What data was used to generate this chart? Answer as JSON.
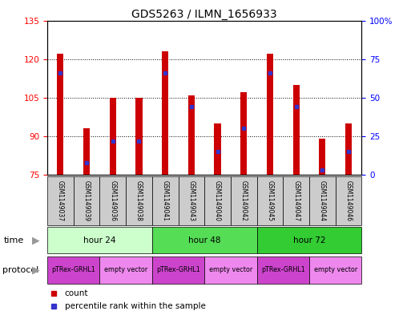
{
  "title": "GDS5263 / ILMN_1656933",
  "samples": [
    "GSM1149037",
    "GSM1149039",
    "GSM1149036",
    "GSM1149038",
    "GSM1149041",
    "GSM1149043",
    "GSM1149040",
    "GSM1149042",
    "GSM1149045",
    "GSM1149047",
    "GSM1149044",
    "GSM1149046"
  ],
  "counts": [
    122,
    93,
    105,
    105,
    123,
    106,
    95,
    107,
    122,
    110,
    89,
    95
  ],
  "percentile_ranks": [
    66,
    8,
    22,
    22,
    66,
    44,
    15,
    30,
    66,
    44,
    3,
    15
  ],
  "y_min": 75,
  "y_max": 135,
  "y_ticks": [
    75,
    90,
    105,
    120,
    135
  ],
  "y2_ticks": [
    0,
    25,
    50,
    75,
    100
  ],
  "bar_color": "#cc0000",
  "dot_color": "#3333cc",
  "bar_bottom": 75,
  "time_groups": [
    {
      "label": "hour 24",
      "start": 0,
      "end": 4,
      "color": "#ccffcc"
    },
    {
      "label": "hour 48",
      "start": 4,
      "end": 8,
      "color": "#55dd55"
    },
    {
      "label": "hour 72",
      "start": 8,
      "end": 12,
      "color": "#33cc33"
    }
  ],
  "protocol_groups": [
    {
      "label": "pTRex-GRHL1",
      "start": 0,
      "end": 2,
      "color": "#cc44cc"
    },
    {
      "label": "empty vector",
      "start": 2,
      "end": 4,
      "color": "#ee88ee"
    },
    {
      "label": "pTRex-GRHL1",
      "start": 4,
      "end": 6,
      "color": "#cc44cc"
    },
    {
      "label": "empty vector",
      "start": 6,
      "end": 8,
      "color": "#ee88ee"
    },
    {
      "label": "pTRex-GRHL1",
      "start": 8,
      "end": 10,
      "color": "#cc44cc"
    },
    {
      "label": "empty vector",
      "start": 10,
      "end": 12,
      "color": "#ee88ee"
    }
  ],
  "bg_color": "#ffffff",
  "sample_box_color": "#cccccc",
  "title_fontsize": 10,
  "tick_fontsize": 7.5,
  "sample_fontsize": 5.5,
  "row_fontsize": 7.5,
  "legend_fontsize": 7.5
}
